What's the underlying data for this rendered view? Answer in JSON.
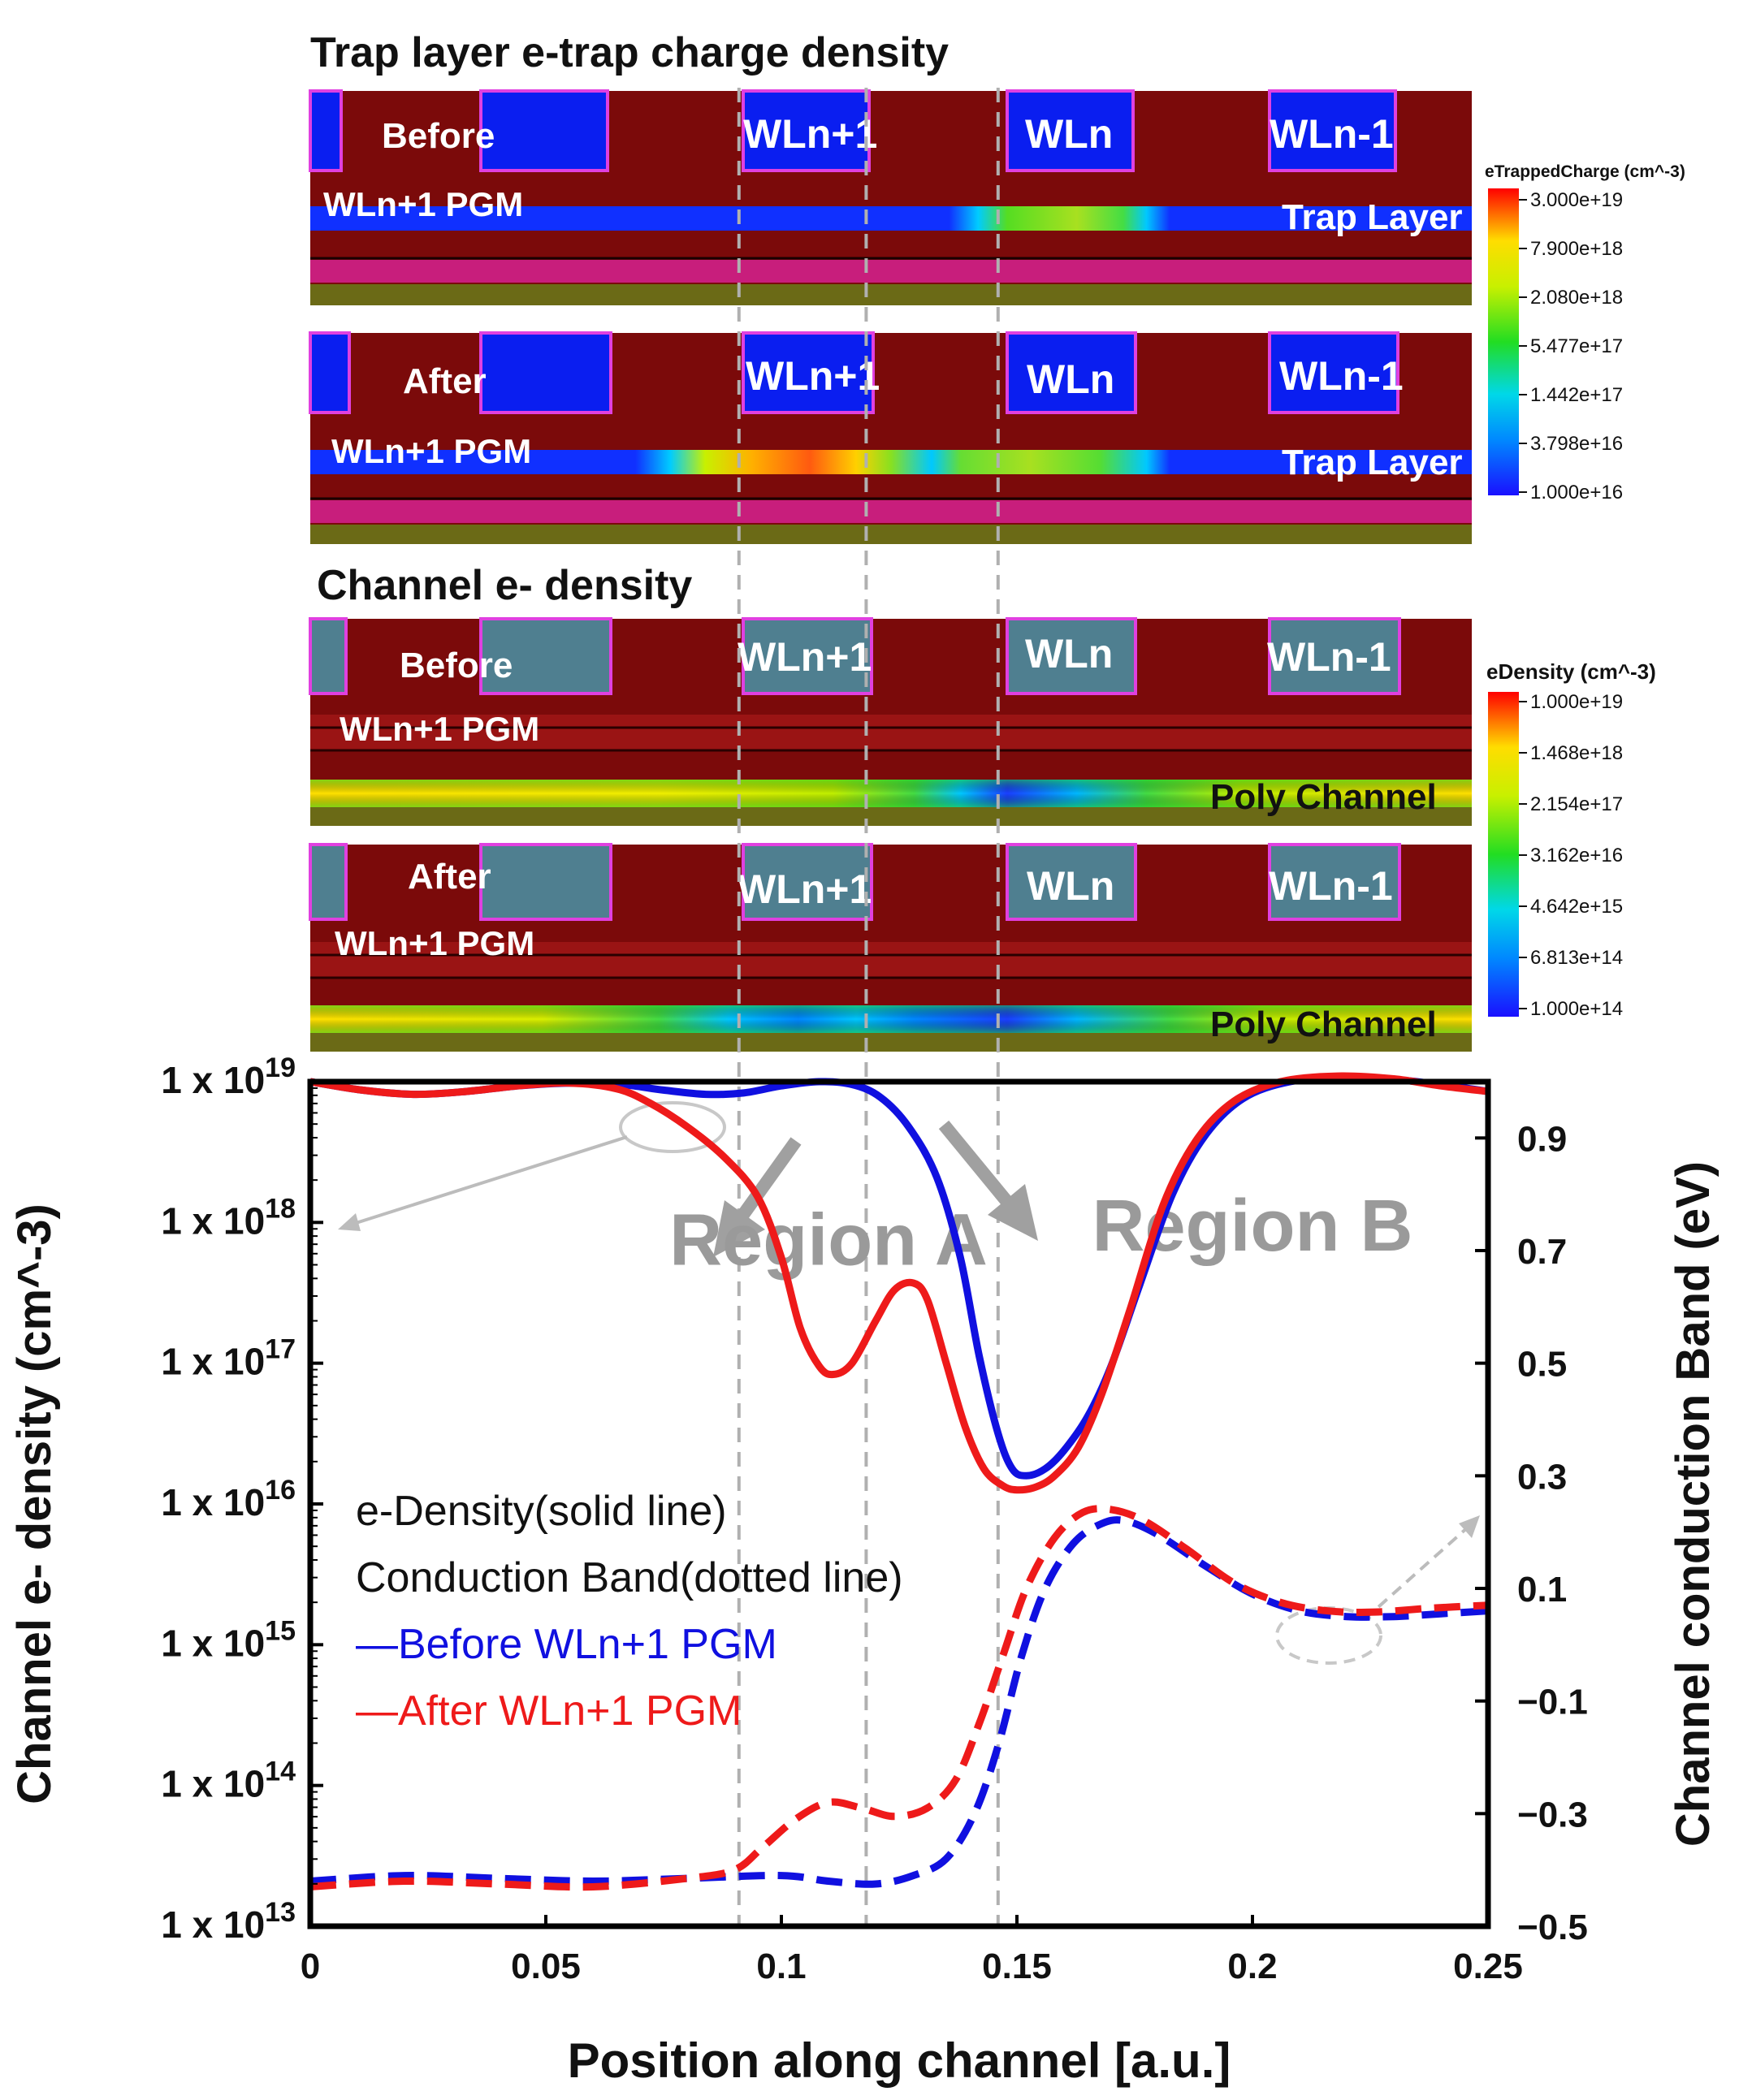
{
  "section_titles": {
    "trap": "Trap layer e-trap charge density",
    "channel": "Channel e- density"
  },
  "panels": {
    "trap_before": {
      "state": "Before",
      "sub": "WLn+1 PGM",
      "wl_labels": [
        "WLn+1",
        "WLn",
        "WLn-1"
      ],
      "layer": "Trap Layer",
      "trapped_at": [
        "WLn"
      ]
    },
    "trap_after": {
      "state": "After",
      "sub": "WLn+1 PGM",
      "wl_labels": [
        "WLn+1",
        "WLn",
        "WLn-1"
      ],
      "layer": "Trap Layer",
      "trapped_at": [
        "WLn+1",
        "WLn"
      ]
    },
    "chan_before": {
      "state": "Before",
      "sub": "WLn+1 PGM",
      "wl_labels": [
        "WLn+1",
        "WLn",
        "WLn-1"
      ],
      "layer": "Poly Channel",
      "depleted_at": [
        "WLn"
      ]
    },
    "chan_after": {
      "state": "After",
      "sub": "WLn+1 PGM",
      "wl_labels": [
        "WLn+1",
        "WLn",
        "WLn-1"
      ],
      "layer": "Poly Channel",
      "depleted_at": [
        "WLn+1",
        "WLn"
      ]
    }
  },
  "colorbars": {
    "trap": {
      "title": "eTrappedCharge (cm^-3)",
      "ticks": [
        "3.000e+19",
        "7.900e+18",
        "2.080e+18",
        "5.477e+17",
        "1.442e+17",
        "3.798e+16",
        "1.000e+16"
      ]
    },
    "density": {
      "title": "eDensity (cm^-3)",
      "ticks": [
        "1.000e+19",
        "1.468e+18",
        "2.154e+17",
        "3.162e+16",
        "4.642e+15",
        "6.813e+14",
        "1.000e+14"
      ]
    }
  },
  "colors": {
    "before": "#1010e0",
    "after": "#ee1a1a",
    "oxide": "#7b0a0a",
    "gate_trap": "#0a1ef0",
    "gate_channel": "#4f7f90",
    "gate_edge": "#e040e0",
    "pink_layer": "#c81e7c",
    "olive_layer": "#6b6a16",
    "region": "#9a9a9a",
    "guide": "#b0b0b0",
    "colormap": [
      "#1a10ff",
      "#00c8ff",
      "#22dd22",
      "#ffff00",
      "#ff0000"
    ]
  },
  "chart_data": {
    "type": "line",
    "xlabel": "Position along channel [a.u.]",
    "ylabel": "Channel e- density (cm^-3)",
    "y2label": "Channel conduction Band (eV)",
    "xlim": [
      0,
      0.25
    ],
    "x_ticks": [
      "0",
      "0.05",
      "0.1",
      "0.15",
      "0.2",
      "0.25"
    ],
    "ylim_log10": [
      13,
      19
    ],
    "y_tick_mantissa": "1 x 10",
    "y_tick_exponents": [
      "19",
      "18",
      "17",
      "16",
      "15",
      "14",
      "13"
    ],
    "y2lim": [
      -0.5,
      1.0
    ],
    "y2_ticks": [
      "0.9",
      "0.7",
      "0.5",
      "0.3",
      "0.1",
      "−0.1",
      "−0.3",
      "−0.5"
    ],
    "guide_x": [
      0.091,
      0.118,
      0.146
    ],
    "regions": [
      {
        "label": "Region A",
        "x": 0.11,
        "log10": 17.7
      },
      {
        "label": "Region B",
        "x": 0.2,
        "log10": 17.8
      }
    ],
    "legend": [
      "e-Density(solid line)",
      "Conduction Band(dotted line)",
      "—Before WLn+1 PGM",
      "—After WLn+1 PGM"
    ],
    "series": [
      {
        "name": "Before WLn+1 PGM e-Density",
        "style": "solid",
        "axis": "left",
        "points": [
          [
            0,
            19.0
          ],
          [
            0.011,
            18.94
          ],
          [
            0.022,
            18.91
          ],
          [
            0.033,
            18.93
          ],
          [
            0.044,
            18.97
          ],
          [
            0.055,
            18.99
          ],
          [
            0.066,
            18.98
          ],
          [
            0.075,
            18.94
          ],
          [
            0.084,
            18.91
          ],
          [
            0.092,
            18.92
          ],
          [
            0.1,
            18.97
          ],
          [
            0.108,
            19.0
          ],
          [
            0.115,
            18.98
          ],
          [
            0.121,
            18.89
          ],
          [
            0.127,
            18.68
          ],
          [
            0.133,
            18.32
          ],
          [
            0.138,
            17.75
          ],
          [
            0.142,
            17.05
          ],
          [
            0.146,
            16.5
          ],
          [
            0.149,
            16.25
          ],
          [
            0.152,
            16.2
          ],
          [
            0.156,
            16.25
          ],
          [
            0.16,
            16.38
          ],
          [
            0.165,
            16.62
          ],
          [
            0.17,
            16.98
          ],
          [
            0.176,
            17.55
          ],
          [
            0.183,
            18.2
          ],
          [
            0.19,
            18.62
          ],
          [
            0.198,
            18.88
          ],
          [
            0.208,
            19.0
          ],
          [
            0.22,
            19.03
          ],
          [
            0.232,
            19.01
          ],
          [
            0.242,
            18.97
          ],
          [
            0.25,
            18.93
          ]
        ]
      },
      {
        "name": "After WLn+1 PGM e-Density",
        "style": "solid",
        "axis": "left",
        "points": [
          [
            0,
            19.0
          ],
          [
            0.011,
            18.94
          ],
          [
            0.022,
            18.91
          ],
          [
            0.033,
            18.93
          ],
          [
            0.044,
            18.97
          ],
          [
            0.055,
            18.99
          ],
          [
            0.065,
            18.95
          ],
          [
            0.072,
            18.85
          ],
          [
            0.08,
            18.68
          ],
          [
            0.088,
            18.46
          ],
          [
            0.095,
            18.18
          ],
          [
            0.1,
            17.75
          ],
          [
            0.104,
            17.25
          ],
          [
            0.108,
            16.98
          ],
          [
            0.111,
            16.92
          ],
          [
            0.115,
            17.0
          ],
          [
            0.12,
            17.3
          ],
          [
            0.124,
            17.52
          ],
          [
            0.128,
            17.57
          ],
          [
            0.131,
            17.45
          ],
          [
            0.135,
            17.0
          ],
          [
            0.139,
            16.55
          ],
          [
            0.143,
            16.25
          ],
          [
            0.147,
            16.13
          ],
          [
            0.15,
            16.1
          ],
          [
            0.154,
            16.12
          ],
          [
            0.158,
            16.2
          ],
          [
            0.163,
            16.4
          ],
          [
            0.168,
            16.78
          ],
          [
            0.174,
            17.38
          ],
          [
            0.181,
            18.12
          ],
          [
            0.188,
            18.58
          ],
          [
            0.196,
            18.86
          ],
          [
            0.206,
            19.0
          ],
          [
            0.218,
            19.04
          ],
          [
            0.23,
            19.02
          ],
          [
            0.24,
            18.97
          ],
          [
            0.25,
            18.93
          ]
        ]
      },
      {
        "name": "Before WLn+1 PGM Conduction Band",
        "style": "dashed",
        "axis": "right",
        "points": [
          [
            0,
            -0.42
          ],
          [
            0.02,
            -0.41
          ],
          [
            0.04,
            -0.415
          ],
          [
            0.06,
            -0.42
          ],
          [
            0.08,
            -0.415
          ],
          [
            0.1,
            -0.41
          ],
          [
            0.11,
            -0.42
          ],
          [
            0.12,
            -0.425
          ],
          [
            0.128,
            -0.41
          ],
          [
            0.135,
            -0.38
          ],
          [
            0.141,
            -0.3
          ],
          [
            0.146,
            -0.18
          ],
          [
            0.151,
            -0.02
          ],
          [
            0.156,
            0.1
          ],
          [
            0.162,
            0.18
          ],
          [
            0.168,
            0.215
          ],
          [
            0.173,
            0.22
          ],
          [
            0.18,
            0.195
          ],
          [
            0.19,
            0.14
          ],
          [
            0.2,
            0.09
          ],
          [
            0.21,
            0.06
          ],
          [
            0.22,
            0.05
          ],
          [
            0.23,
            0.05
          ],
          [
            0.24,
            0.055
          ],
          [
            0.25,
            0.06
          ]
        ]
      },
      {
        "name": "After WLn+1 PGM Conduction Band",
        "style": "dashed",
        "axis": "right",
        "points": [
          [
            0,
            -0.43
          ],
          [
            0.02,
            -0.42
          ],
          [
            0.04,
            -0.425
          ],
          [
            0.06,
            -0.43
          ],
          [
            0.08,
            -0.415
          ],
          [
            0.09,
            -0.4
          ],
          [
            0.096,
            -0.36
          ],
          [
            0.103,
            -0.31
          ],
          [
            0.11,
            -0.28
          ],
          [
            0.117,
            -0.29
          ],
          [
            0.124,
            -0.305
          ],
          [
            0.131,
            -0.29
          ],
          [
            0.137,
            -0.24
          ],
          [
            0.142,
            -0.14
          ],
          [
            0.147,
            -0.02
          ],
          [
            0.152,
            0.1
          ],
          [
            0.158,
            0.19
          ],
          [
            0.164,
            0.235
          ],
          [
            0.17,
            0.24
          ],
          [
            0.177,
            0.22
          ],
          [
            0.186,
            0.17
          ],
          [
            0.196,
            0.11
          ],
          [
            0.206,
            0.075
          ],
          [
            0.216,
            0.06
          ],
          [
            0.226,
            0.058
          ],
          [
            0.238,
            0.065
          ],
          [
            0.25,
            0.07
          ]
        ]
      }
    ]
  }
}
